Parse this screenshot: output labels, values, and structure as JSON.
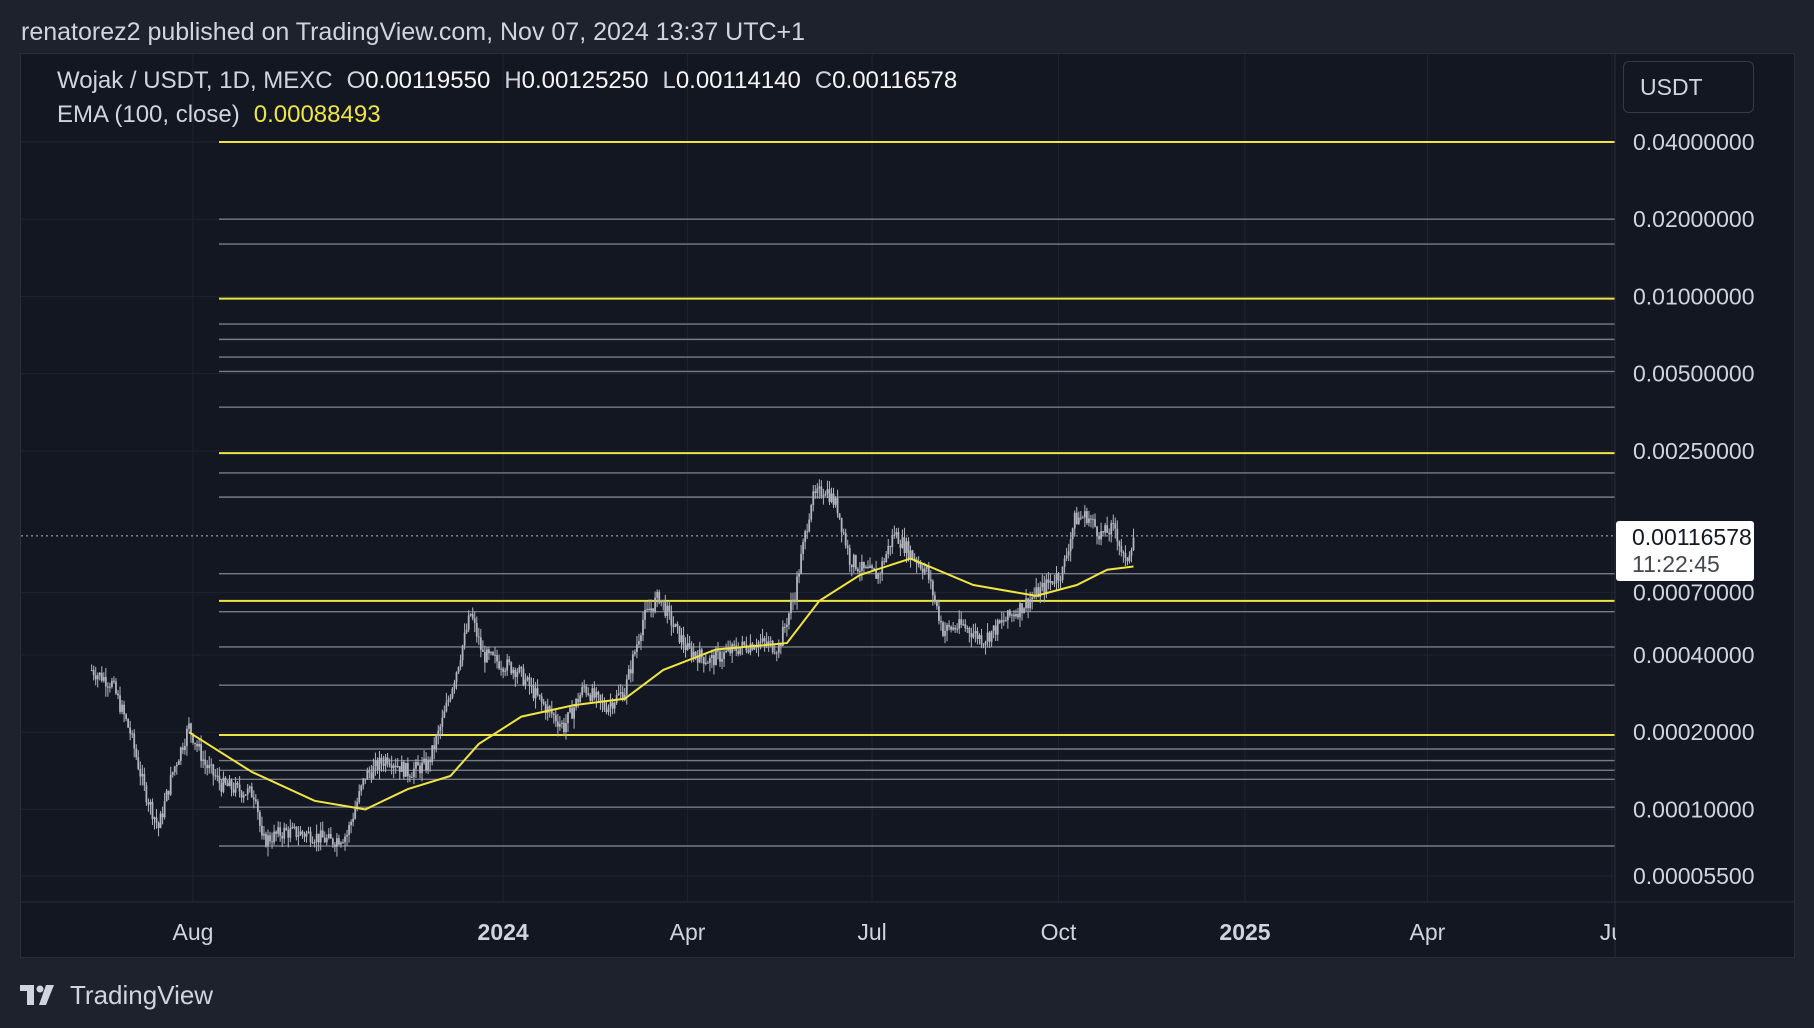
{
  "header": {
    "publish_line": "renatorez2 published on TradingView.com, Nov 07, 2024 13:37 UTC+1"
  },
  "legend": {
    "symbol": "Wojak / USDT, 1D, MEXC",
    "o_label": "O",
    "o_value": "0.00119550",
    "h_label": "H",
    "h_value": "0.00125250",
    "l_label": "L",
    "l_value": "0.00114140",
    "c_label": "C",
    "c_value": "0.00116578",
    "ema_label": "EMA (100, close)",
    "ema_value": "0.00088493"
  },
  "currency_button": {
    "label": "USDT"
  },
  "last_price": {
    "value": "0.00116578",
    "countdown": "11:22:45"
  },
  "footer": {
    "brand": "TradingView"
  },
  "colors": {
    "background": "#131722",
    "page": "#1e222d",
    "yellow_level": "#f0e442",
    "grey_level": "#787b86",
    "candles": "#b2b5be",
    "ema": "#f0e442"
  },
  "chart_data": {
    "type": "candlestick",
    "symbol": "Wojak / USDT",
    "interval": "1D",
    "scale": "log",
    "ylim": [
      4.7e-05,
      0.043
    ],
    "y_tick_labels": [
      "0.04000000",
      "0.02000000",
      "0.01000000",
      "0.00500000",
      "0.00250000",
      "0.00070000",
      "0.00040000",
      "0.00020000",
      "0.00010000",
      "0.00005500"
    ],
    "y_tick_values": [
      0.04,
      0.02,
      0.01,
      0.005,
      0.0025,
      0.0007,
      0.0004,
      0.0002,
      0.0001,
      5.5e-05
    ],
    "x_tick_labels": [
      "Aug",
      "2024",
      "Apr",
      "Jul",
      "Oct",
      "2025",
      "Apr",
      "Ju"
    ],
    "x_tick_dates": [
      "2023-08-01",
      "2024-01-01",
      "2024-04-01",
      "2024-07-01",
      "2024-10-01",
      "2025-01-01",
      "2025-04-01",
      "2025-07-01"
    ],
    "x_bold_ticks": [
      "2024",
      "2025"
    ],
    "yellow_levels": [
      0.04,
      0.0098,
      0.00245,
      0.00065,
      0.000195
    ],
    "grey_levels": [
      0.02,
      0.016,
      0.0078,
      0.0068,
      0.0058,
      0.0051,
      0.0037,
      0.00205,
      0.00165,
      0.00083,
      0.00059,
      0.00043,
      0.000305,
      0.000172,
      0.000155,
      0.000142,
      0.000131,
      0.000102,
      7.2e-05
    ],
    "price_series": [
      {
        "date": "2023-06-12",
        "value": 0.00035
      },
      {
        "date": "2023-06-22",
        "value": 0.00031
      },
      {
        "date": "2023-07-01",
        "value": 0.0002
      },
      {
        "date": "2023-07-08",
        "value": 0.00012
      },
      {
        "date": "2023-07-15",
        "value": 8.5e-05
      },
      {
        "date": "2023-07-22",
        "value": 0.00014
      },
      {
        "date": "2023-07-30",
        "value": 0.00021
      },
      {
        "date": "2023-08-07",
        "value": 0.00015
      },
      {
        "date": "2023-08-15",
        "value": 0.000125
      },
      {
        "date": "2023-08-25",
        "value": 0.000118
      },
      {
        "date": "2023-09-01",
        "value": 0.000115
      },
      {
        "date": "2023-09-04",
        "value": 7.5e-05
      },
      {
        "date": "2023-09-15",
        "value": 8.2e-05
      },
      {
        "date": "2023-09-28",
        "value": 8e-05
      },
      {
        "date": "2023-10-08",
        "value": 7.5e-05
      },
      {
        "date": "2023-10-16",
        "value": 8e-05
      },
      {
        "date": "2023-10-25",
        "value": 0.000135
      },
      {
        "date": "2023-11-05",
        "value": 0.00016
      },
      {
        "date": "2023-11-15",
        "value": 0.00014
      },
      {
        "date": "2023-11-25",
        "value": 0.00015
      },
      {
        "date": "2023-12-02",
        "value": 0.00022
      },
      {
        "date": "2023-12-09",
        "value": 0.00035
      },
      {
        "date": "2023-12-16",
        "value": 0.00058
      },
      {
        "date": "2023-12-22",
        "value": 0.0004
      },
      {
        "date": "2024-01-08",
        "value": 0.00035
      },
      {
        "date": "2024-01-20",
        "value": 0.00026
      },
      {
        "date": "2024-01-31",
        "value": 0.00021
      },
      {
        "date": "2024-02-10",
        "value": 0.0003
      },
      {
        "date": "2024-02-20",
        "value": 0.00025
      },
      {
        "date": "2024-03-01",
        "value": 0.00029
      },
      {
        "date": "2024-03-10",
        "value": 0.00055
      },
      {
        "date": "2024-03-18",
        "value": 0.00068
      },
      {
        "date": "2024-03-25",
        "value": 0.00052
      },
      {
        "date": "2024-04-01",
        "value": 0.00042
      },
      {
        "date": "2024-04-12",
        "value": 0.00038
      },
      {
        "date": "2024-04-24",
        "value": 0.00042
      },
      {
        "date": "2024-05-05",
        "value": 0.00045
      },
      {
        "date": "2024-05-16",
        "value": 0.00043
      },
      {
        "date": "2024-05-24",
        "value": 0.0007
      },
      {
        "date": "2024-06-01",
        "value": 0.0016
      },
      {
        "date": "2024-06-08",
        "value": 0.0018
      },
      {
        "date": "2024-06-14",
        "value": 0.0015
      },
      {
        "date": "2024-06-20",
        "value": 0.00095
      },
      {
        "date": "2024-06-27",
        "value": 0.00085
      },
      {
        "date": "2024-07-04",
        "value": 0.00082
      },
      {
        "date": "2024-07-12",
        "value": 0.0012
      },
      {
        "date": "2024-07-20",
        "value": 0.001
      },
      {
        "date": "2024-07-28",
        "value": 0.00085
      },
      {
        "date": "2024-08-05",
        "value": 0.0005
      },
      {
        "date": "2024-08-15",
        "value": 0.00052
      },
      {
        "date": "2024-08-25",
        "value": 0.00046
      },
      {
        "date": "2024-09-05",
        "value": 0.00055
      },
      {
        "date": "2024-09-15",
        "value": 0.00064
      },
      {
        "date": "2024-09-25",
        "value": 0.00075
      },
      {
        "date": "2024-10-03",
        "value": 0.00085
      },
      {
        "date": "2024-10-09",
        "value": 0.00135
      },
      {
        "date": "2024-10-15",
        "value": 0.0014
      },
      {
        "date": "2024-10-22",
        "value": 0.00118
      },
      {
        "date": "2024-10-29",
        "value": 0.00125
      },
      {
        "date": "2024-11-03",
        "value": 0.0009
      },
      {
        "date": "2024-11-07",
        "value": 0.00116578
      }
    ],
    "ema_series": [
      {
        "date": "2023-07-30",
        "value": 0.0002
      },
      {
        "date": "2023-08-30",
        "value": 0.00014
      },
      {
        "date": "2023-09-30",
        "value": 0.000108
      },
      {
        "date": "2023-10-25",
        "value": 0.0001
      },
      {
        "date": "2023-11-15",
        "value": 0.00012
      },
      {
        "date": "2023-12-06",
        "value": 0.000135
      },
      {
        "date": "2023-12-20",
        "value": 0.00018
      },
      {
        "date": "2024-01-10",
        "value": 0.00023
      },
      {
        "date": "2024-02-05",
        "value": 0.000255
      },
      {
        "date": "2024-03-01",
        "value": 0.00027
      },
      {
        "date": "2024-03-20",
        "value": 0.00035
      },
      {
        "date": "2024-04-15",
        "value": 0.00042
      },
      {
        "date": "2024-05-20",
        "value": 0.000445
      },
      {
        "date": "2024-06-05",
        "value": 0.00065
      },
      {
        "date": "2024-06-25",
        "value": 0.00082
      },
      {
        "date": "2024-07-20",
        "value": 0.00095
      },
      {
        "date": "2024-08-20",
        "value": 0.00075
      },
      {
        "date": "2024-09-20",
        "value": 0.00068
      },
      {
        "date": "2024-10-10",
        "value": 0.00075
      },
      {
        "date": "2024-10-25",
        "value": 0.00086
      },
      {
        "date": "2024-11-07",
        "value": 0.00088493
      }
    ]
  }
}
